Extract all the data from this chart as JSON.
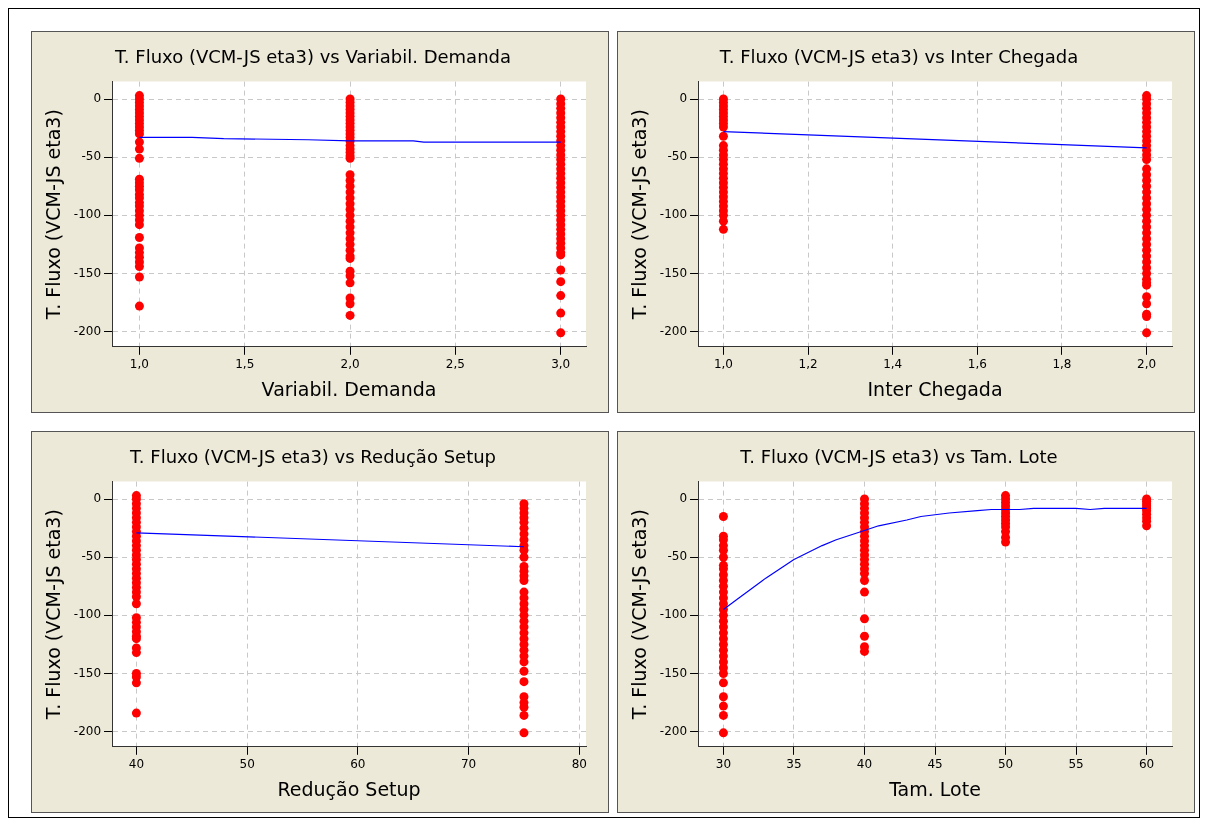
{
  "chart_data": [
    {
      "type": "scatter",
      "title": "T. Fluxo (VCM-JS eta3) vs Variabil. Demanda",
      "xlabel": "Variabil. Demanda",
      "ylabel": "T. Fluxo (VCM-JS eta3)",
      "xlim": [
        0.87,
        3.12
      ],
      "ylim": [
        -213,
        15
      ],
      "xticks": [
        {
          "value": 1,
          "label": "1,0"
        },
        {
          "value": 1.5,
          "label": "1,5"
        },
        {
          "value": 2,
          "label": "2,0"
        },
        {
          "value": 2.5,
          "label": "2,5"
        },
        {
          "value": 3,
          "label": "3,0"
        }
      ],
      "yticks": [
        0,
        -50,
        -100,
        -150,
        -200
      ],
      "grid": true,
      "series": [
        {
          "type": "scatter",
          "marker": "circle",
          "color": "#ff0000",
          "x": [
            1,
            1,
            1,
            1,
            1,
            1,
            1,
            1,
            1,
            1,
            1,
            1,
            1,
            1,
            1,
            1,
            1,
            1,
            1,
            1,
            1,
            1,
            1,
            1,
            1,
            1,
            1,
            1,
            1,
            1,
            1,
            1,
            1,
            1,
            1,
            2,
            2,
            2,
            2,
            2,
            2,
            2,
            2,
            2,
            2,
            2,
            2,
            2,
            2,
            2,
            2,
            2,
            2,
            2,
            2,
            2,
            2,
            2,
            2,
            2,
            2,
            2,
            2,
            2,
            2,
            2,
            2,
            2,
            2,
            2,
            2,
            2,
            2,
            2,
            2,
            3,
            3,
            3,
            3,
            3,
            3,
            3,
            3,
            3,
            3,
            3,
            3,
            3,
            3,
            3,
            3,
            3,
            3,
            3,
            3,
            3,
            3,
            3,
            3,
            3,
            3,
            3,
            3,
            3,
            3,
            3,
            3,
            3,
            3,
            3,
            3,
            3,
            3,
            3,
            3
          ],
          "values": [
            3,
            0,
            -3,
            -6,
            -9,
            -12,
            -15,
            -18,
            -21,
            -24,
            -27,
            -30,
            -37,
            -43,
            -51,
            -69,
            -72,
            -75,
            -78,
            -82,
            -85,
            -89,
            -92,
            -96,
            -100,
            -104,
            -108,
            -119,
            -128,
            -132,
            -136,
            -140,
            -144,
            -153,
            -178,
            0,
            -3,
            -6,
            -9,
            -12,
            -15,
            -18,
            -21,
            -24,
            -27,
            -30,
            -33,
            -36,
            -40,
            -43,
            -46,
            -49,
            -51,
            -65,
            -70,
            -75,
            -80,
            -85,
            -90,
            -95,
            -100,
            -105,
            -110,
            -115,
            -120,
            -125,
            -130,
            -137,
            -148,
            -152,
            -158,
            -171,
            -176,
            -186,
            -135,
            0,
            -4,
            -8,
            -12,
            -16,
            -20,
            -24,
            -28,
            -32,
            -36,
            -40,
            -44,
            -48,
            -52,
            -56,
            -60,
            -64,
            -68,
            -72,
            -76,
            -80,
            -84,
            -88,
            -92,
            -96,
            -100,
            -104,
            -108,
            -112,
            -116,
            -120,
            -124,
            -128,
            -132,
            -134,
            -147,
            -157,
            -169,
            -184,
            -201
          ]
        },
        {
          "type": "line",
          "marker": "none",
          "line_style": "solid",
          "color": "#0000ff",
          "x": [
            1,
            1.25,
            1.4,
            1.8,
            2,
            2.3,
            2.35,
            3
          ],
          "values": [
            -33,
            -33,
            -34,
            -35,
            -36,
            -36,
            -37,
            -37
          ]
        }
      ]
    },
    {
      "type": "scatter",
      "title": "T. Fluxo (VCM-JS eta3) vs Inter Chegada",
      "xlabel": "Inter Chegada",
      "ylabel": "T. Fluxo (VCM-JS eta3)",
      "xlim": [
        0.94,
        2.06
      ],
      "ylim": [
        -213,
        15
      ],
      "xticks": [
        {
          "value": 1,
          "label": "1,0"
        },
        {
          "value": 1.2,
          "label": "1,2"
        },
        {
          "value": 1.4,
          "label": "1,4"
        },
        {
          "value": 1.6,
          "label": "1,6"
        },
        {
          "value": 1.8,
          "label": "1,8"
        },
        {
          "value": 2,
          "label": "2,0"
        }
      ],
      "yticks": [
        0,
        -50,
        -100,
        -150,
        -200
      ],
      "grid": true,
      "series": [
        {
          "type": "scatter",
          "marker": "circle",
          "color": "#ff0000",
          "x": [
            1,
            1,
            1,
            1,
            1,
            1,
            1,
            1,
            1,
            1,
            1,
            1,
            1,
            1,
            1,
            1,
            1,
            1,
            1,
            1,
            1,
            1,
            1,
            1,
            1,
            1,
            1,
            1,
            2,
            2,
            2,
            2,
            2,
            2,
            2,
            2,
            2,
            2,
            2,
            2,
            2,
            2,
            2,
            2,
            2,
            2,
            2,
            2,
            2,
            2,
            2,
            2,
            2,
            2,
            2,
            2,
            2,
            2,
            2,
            2,
            2,
            2,
            2,
            2,
            2,
            2,
            2,
            2,
            2,
            2
          ],
          "values": [
            0,
            -3,
            -6,
            -9,
            -12,
            -15,
            -18,
            -21,
            -24,
            -32,
            -40,
            -44,
            -48,
            -52,
            -56,
            -60,
            -64,
            -68,
            -72,
            -76,
            -80,
            -84,
            -88,
            -92,
            -96,
            -100,
            -105,
            -112,
            3,
            0,
            -4,
            -8,
            -12,
            -16,
            -20,
            -24,
            -28,
            -32,
            -36,
            -40,
            -44,
            -48,
            -52,
            -60,
            -65,
            -70,
            -75,
            -80,
            -85,
            -90,
            -95,
            -100,
            -105,
            -110,
            -115,
            -120,
            -125,
            -130,
            -135,
            -140,
            -145,
            -150,
            -155,
            -160,
            -170,
            -176,
            -185,
            -187,
            -201,
            -158
          ]
        },
        {
          "type": "line",
          "marker": "none",
          "line_style": "solid",
          "color": "#0000ff",
          "x": [
            1,
            2
          ],
          "values": [
            -28,
            -42
          ]
        }
      ]
    },
    {
      "type": "scatter",
      "title": "T. Fluxo (VCM-JS eta3) vs Redução Setup",
      "xlabel": "Redução Setup",
      "ylabel": "T. Fluxo (VCM-JS eta3)",
      "xlim": [
        37.8,
        80.6
      ],
      "ylim": [
        -213,
        15
      ],
      "xticks": [
        40,
        50,
        60,
        70,
        80
      ],
      "yticks": [
        0,
        -50,
        -100,
        -150,
        -200
      ],
      "grid": true,
      "series": [
        {
          "type": "scatter",
          "marker": "circle",
          "color": "#ff0000",
          "x": [
            40,
            40,
            40,
            40,
            40,
            40,
            40,
            40,
            40,
            40,
            40,
            40,
            40,
            40,
            40,
            40,
            40,
            40,
            40,
            40,
            40,
            40,
            40,
            40,
            40,
            40,
            40,
            40,
            40,
            40,
            40,
            40,
            40,
            40,
            40,
            40,
            75,
            75,
            75,
            75,
            75,
            75,
            75,
            75,
            75,
            75,
            75,
            75,
            75,
            75,
            75,
            75,
            75,
            75,
            75,
            75,
            75,
            75,
            75,
            75,
            75,
            75,
            75,
            75,
            75,
            75,
            75,
            75,
            75,
            75,
            75
          ],
          "values": [
            3,
            0,
            -4,
            -8,
            -12,
            -16,
            -20,
            -24,
            -28,
            -32,
            -36,
            -40,
            -44,
            -48,
            -52,
            -56,
            -60,
            -64,
            -68,
            -72,
            -76,
            -80,
            -84,
            -90,
            -102,
            -106,
            -110,
            -114,
            -118,
            -128,
            -132,
            -150,
            -153,
            -158,
            -184,
            -120,
            -4,
            -8,
            -12,
            -16,
            -20,
            -25,
            -30,
            -35,
            -40,
            -44,
            -50,
            -58,
            -62,
            -66,
            -70,
            -80,
            -85,
            -90,
            -95,
            -100,
            -105,
            -110,
            -115,
            -120,
            -125,
            -130,
            -135,
            -140,
            -148,
            -157,
            -170,
            -175,
            -179,
            -186,
            -201
          ]
        },
        {
          "type": "line",
          "marker": "none",
          "line_style": "solid",
          "color": "#0000ff",
          "x": [
            40,
            75
          ],
          "values": [
            -29,
            -41
          ]
        }
      ]
    },
    {
      "type": "scatter",
      "title": "T. Fluxo (VCM-JS eta3) vs Tam. Lote",
      "xlabel": "Tam. Lote",
      "ylabel": "T. Fluxo (VCM-JS eta3)",
      "xlim": [
        28.2,
        61.8
      ],
      "ylim": [
        -213,
        15
      ],
      "xticks": [
        30,
        35,
        40,
        45,
        50,
        55,
        60
      ],
      "yticks": [
        0,
        -50,
        -100,
        -150,
        -200
      ],
      "grid": true,
      "series": [
        {
          "type": "scatter",
          "marker": "circle",
          "color": "#ff0000",
          "x": [
            30,
            30,
            30,
            30,
            30,
            30,
            30,
            30,
            30,
            30,
            30,
            30,
            30,
            30,
            30,
            30,
            30,
            30,
            30,
            30,
            30,
            30,
            30,
            30,
            30,
            30,
            30,
            30,
            30,
            30,
            30,
            40,
            40,
            40,
            40,
            40,
            40,
            40,
            40,
            40,
            40,
            40,
            40,
            40,
            40,
            40,
            40,
            40,
            40,
            40,
            40,
            40,
            40,
            40,
            50,
            50,
            50,
            50,
            50,
            50,
            50,
            50,
            50,
            50,
            50,
            50,
            50,
            60,
            60,
            60,
            60,
            60,
            60,
            60,
            60,
            60,
            60
          ],
          "values": [
            -15,
            -32,
            -35,
            -40,
            -44,
            -50,
            -57,
            -60,
            -65,
            -70,
            -75,
            -80,
            -85,
            -90,
            -95,
            -100,
            -105,
            -110,
            -115,
            -120,
            -125,
            -130,
            -135,
            -140,
            -145,
            -150,
            -158,
            -170,
            -178,
            -186,
            -201,
            0,
            -4,
            -8,
            -12,
            -16,
            -20,
            -24,
            -28,
            -32,
            -36,
            -40,
            -44,
            -48,
            -52,
            -56,
            -60,
            -64,
            -70,
            -80,
            -103,
            -118,
            -127,
            -131,
            3,
            0,
            -3,
            -6,
            -9,
            -12,
            -15,
            -18,
            -21,
            -24,
            -28,
            -33,
            -37,
            0,
            -2,
            -4,
            -6,
            -8,
            -10,
            -13,
            -16,
            -19,
            -23
          ]
        },
        {
          "type": "line",
          "marker": "none",
          "line_style": "solid",
          "color": "#0000ff",
          "x": [
            30,
            31,
            33,
            35,
            37,
            38,
            40,
            41,
            43,
            44,
            46,
            48,
            49,
            51,
            52,
            55,
            56,
            57,
            60
          ],
          "values": [
            -95,
            -86,
            -68,
            -52,
            -40,
            -35,
            -27,
            -23,
            -18,
            -15,
            -12,
            -10,
            -9,
            -9,
            -8,
            -8,
            -9,
            -8,
            -8
          ]
        }
      ]
    }
  ]
}
